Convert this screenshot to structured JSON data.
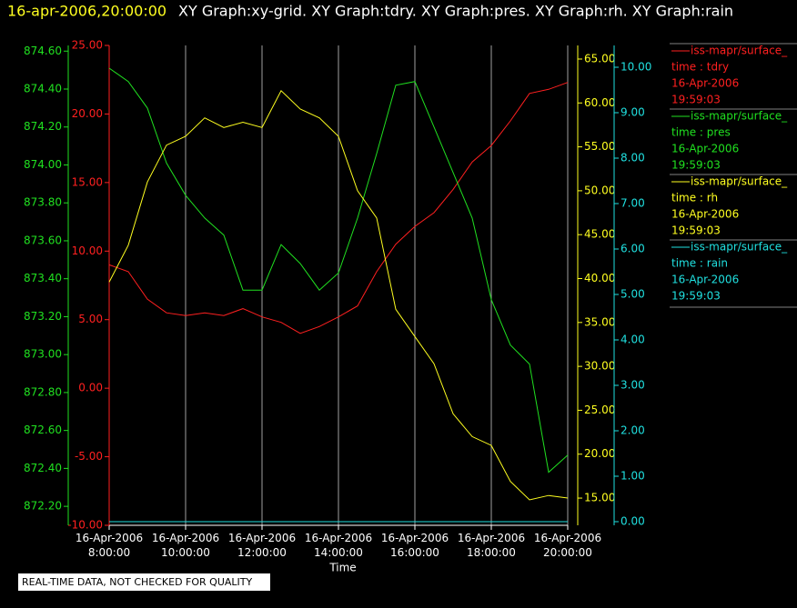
{
  "chart_data": {
    "type": "line",
    "title": "16-apr-2006,20:00:00",
    "subtitle": "XY Graph:xy-grid.  XY Graph:tdry.  XY Graph:pres.  XY Graph:rh.  XY Graph:rain",
    "xlabel": "Time",
    "footnote": "REAL-TIME DATA, NOT CHECKED FOR QUALITY",
    "grid": true,
    "x": [
      "16-Apr-2006 8:00:00",
      "16-Apr-2006 8:30:00",
      "16-Apr-2006 9:00:00",
      "16-Apr-2006 9:30:00",
      "16-Apr-2006 10:00:00",
      "16-Apr-2006 10:30:00",
      "16-Apr-2006 11:00:00",
      "16-Apr-2006 11:30:00",
      "16-Apr-2006 12:00:00",
      "16-Apr-2006 12:30:00",
      "16-Apr-2006 13:00:00",
      "16-Apr-2006 13:30:00",
      "16-Apr-2006 14:00:00",
      "16-Apr-2006 14:30:00",
      "16-Apr-2006 15:00:00",
      "16-Apr-2006 15:30:00",
      "16-Apr-2006 16:00:00",
      "16-Apr-2006 16:30:00",
      "16-Apr-2006 17:00:00",
      "16-Apr-2006 17:30:00",
      "16-Apr-2006 18:00:00",
      "16-Apr-2006 18:30:00",
      "16-Apr-2006 19:00:00",
      "16-Apr-2006 19:30:00",
      "16-Apr-2006 20:00:00"
    ],
    "xlim": [
      "16-Apr-2006 8:00:00",
      "16-Apr-2006 20:00:00"
    ],
    "xticks": [
      "16-Apr-2006 8:00:00",
      "16-Apr-2006 10:00:00",
      "16-Apr-2006 12:00:00",
      "16-Apr-2006 14:00:00",
      "16-Apr-2006 16:00:00",
      "16-Apr-2006 18:00:00",
      "16-Apr-2006 20:00:00"
    ],
    "ylim": [
      -10,
      25
    ],
    "yticks": [
      {
        "value": -10,
        "label": "-10.00"
      },
      {
        "value": -5,
        "label": "-5.00"
      },
      {
        "value": 0,
        "label": "0.00"
      },
      {
        "value": 5,
        "label": "5.00"
      },
      {
        "value": 10,
        "label": "10.00"
      },
      {
        "value": 15,
        "label": "15.00"
      },
      {
        "value": 20,
        "label": "20.00"
      },
      {
        "value": 25,
        "label": "25.00"
      }
    ],
    "y2lim": [
      872.1,
      874.63
    ],
    "y2ticks": [
      {
        "value": 872.2,
        "label": "872.20"
      },
      {
        "value": 872.4,
        "label": "872.40"
      },
      {
        "value": 872.6,
        "label": "872.60"
      },
      {
        "value": 872.8,
        "label": "872.80"
      },
      {
        "value": 873,
        "label": "873.00"
      },
      {
        "value": 873.2,
        "label": "873.20"
      },
      {
        "value": 873.4,
        "label": "873.40"
      },
      {
        "value": 873.6,
        "label": "873.60"
      },
      {
        "value": 873.8,
        "label": "873.80"
      },
      {
        "value": 874,
        "label": "874.00"
      },
      {
        "value": 874.2,
        "label": "874.20"
      },
      {
        "value": 874.4,
        "label": "874.40"
      },
      {
        "value": 874.6,
        "label": "874.60"
      }
    ],
    "y3lim": [
      11.9,
      66.55
    ],
    "y3ticks": [
      {
        "value": 15,
        "label": "15.00"
      },
      {
        "value": 20,
        "label": "20.00"
      },
      {
        "value": 25,
        "label": "25.00"
      },
      {
        "value": 30,
        "label": "30.00"
      },
      {
        "value": 35,
        "label": "35.00"
      },
      {
        "value": 40,
        "label": "40.00"
      },
      {
        "value": 45,
        "label": "45.00"
      },
      {
        "value": 50,
        "label": "50.00"
      },
      {
        "value": 55,
        "label": "55.00"
      },
      {
        "value": 60,
        "label": "60.00"
      },
      {
        "value": 65,
        "label": "65.00"
      }
    ],
    "y4lim": [
      -0.08,
      10.48
    ],
    "y4ticks": [
      {
        "value": 0,
        "label": "0.00"
      },
      {
        "value": 1,
        "label": "1.00"
      },
      {
        "value": 2,
        "label": "2.00"
      },
      {
        "value": 3,
        "label": "3.00"
      },
      {
        "value": 4,
        "label": "4.00"
      },
      {
        "value": 5,
        "label": "5.00"
      },
      {
        "value": 6,
        "label": "6.00"
      },
      {
        "value": 7,
        "label": "7.00"
      },
      {
        "value": 8,
        "label": "8.00"
      },
      {
        "value": 9,
        "label": "9.00"
      },
      {
        "value": 10,
        "label": "10.00"
      }
    ],
    "series": [
      {
        "name": "iss-mapr/surface_",
        "label": "time : tdry",
        "date": "16-Apr-2006",
        "time": "19:59:03",
        "color": "#ff2020",
        "axis": "y",
        "values": [
          9.0,
          8.5,
          6.5,
          5.5,
          5.3,
          5.5,
          5.3,
          5.8,
          5.2,
          4.8,
          4.0,
          4.5,
          5.2,
          6.0,
          8.5,
          10.5,
          11.8,
          12.8,
          14.5,
          16.5,
          17.7,
          19.5,
          21.5,
          21.8,
          22.3
        ]
      },
      {
        "name": "iss-mapr/surface_",
        "label": "time : pres",
        "date": "16-Apr-2006",
        "time": "19:59:03",
        "color": "#20e020",
        "axis": "y2",
        "values": [
          874.51,
          874.44,
          874.3,
          874.01,
          873.84,
          873.72,
          873.63,
          873.34,
          873.34,
          873.58,
          873.48,
          873.34,
          873.43,
          873.72,
          874.06,
          874.42,
          874.44,
          874.2,
          873.96,
          873.72,
          873.29,
          873.05,
          872.95,
          872.38,
          872.47
        ]
      },
      {
        "name": "iss-mapr/surface_",
        "label": "time : rh",
        "date": "16-Apr-2006",
        "time": "19:59:03",
        "color": "#ffff20",
        "axis": "y3",
        "values": [
          39.6,
          43.8,
          51,
          55.2,
          56.2,
          58.3,
          57.2,
          57.8,
          57.2,
          61.4,
          59.3,
          58.3,
          56.2,
          50,
          46.9,
          36.5,
          33.4,
          30.3,
          24.6,
          22,
          21,
          16.9,
          14.8,
          15.3,
          15
        ]
      },
      {
        "name": "iss-mapr/surface_",
        "label": "time : rain",
        "date": "16-Apr-2006",
        "time": "19:59:03",
        "color": "#20e0e0",
        "axis": "y4",
        "values": [
          0,
          0,
          0,
          0,
          0,
          0,
          0,
          0,
          0,
          0,
          0,
          0,
          0,
          0,
          0,
          0,
          0,
          0,
          0,
          0,
          0,
          0,
          0,
          0,
          0
        ]
      }
    ]
  }
}
